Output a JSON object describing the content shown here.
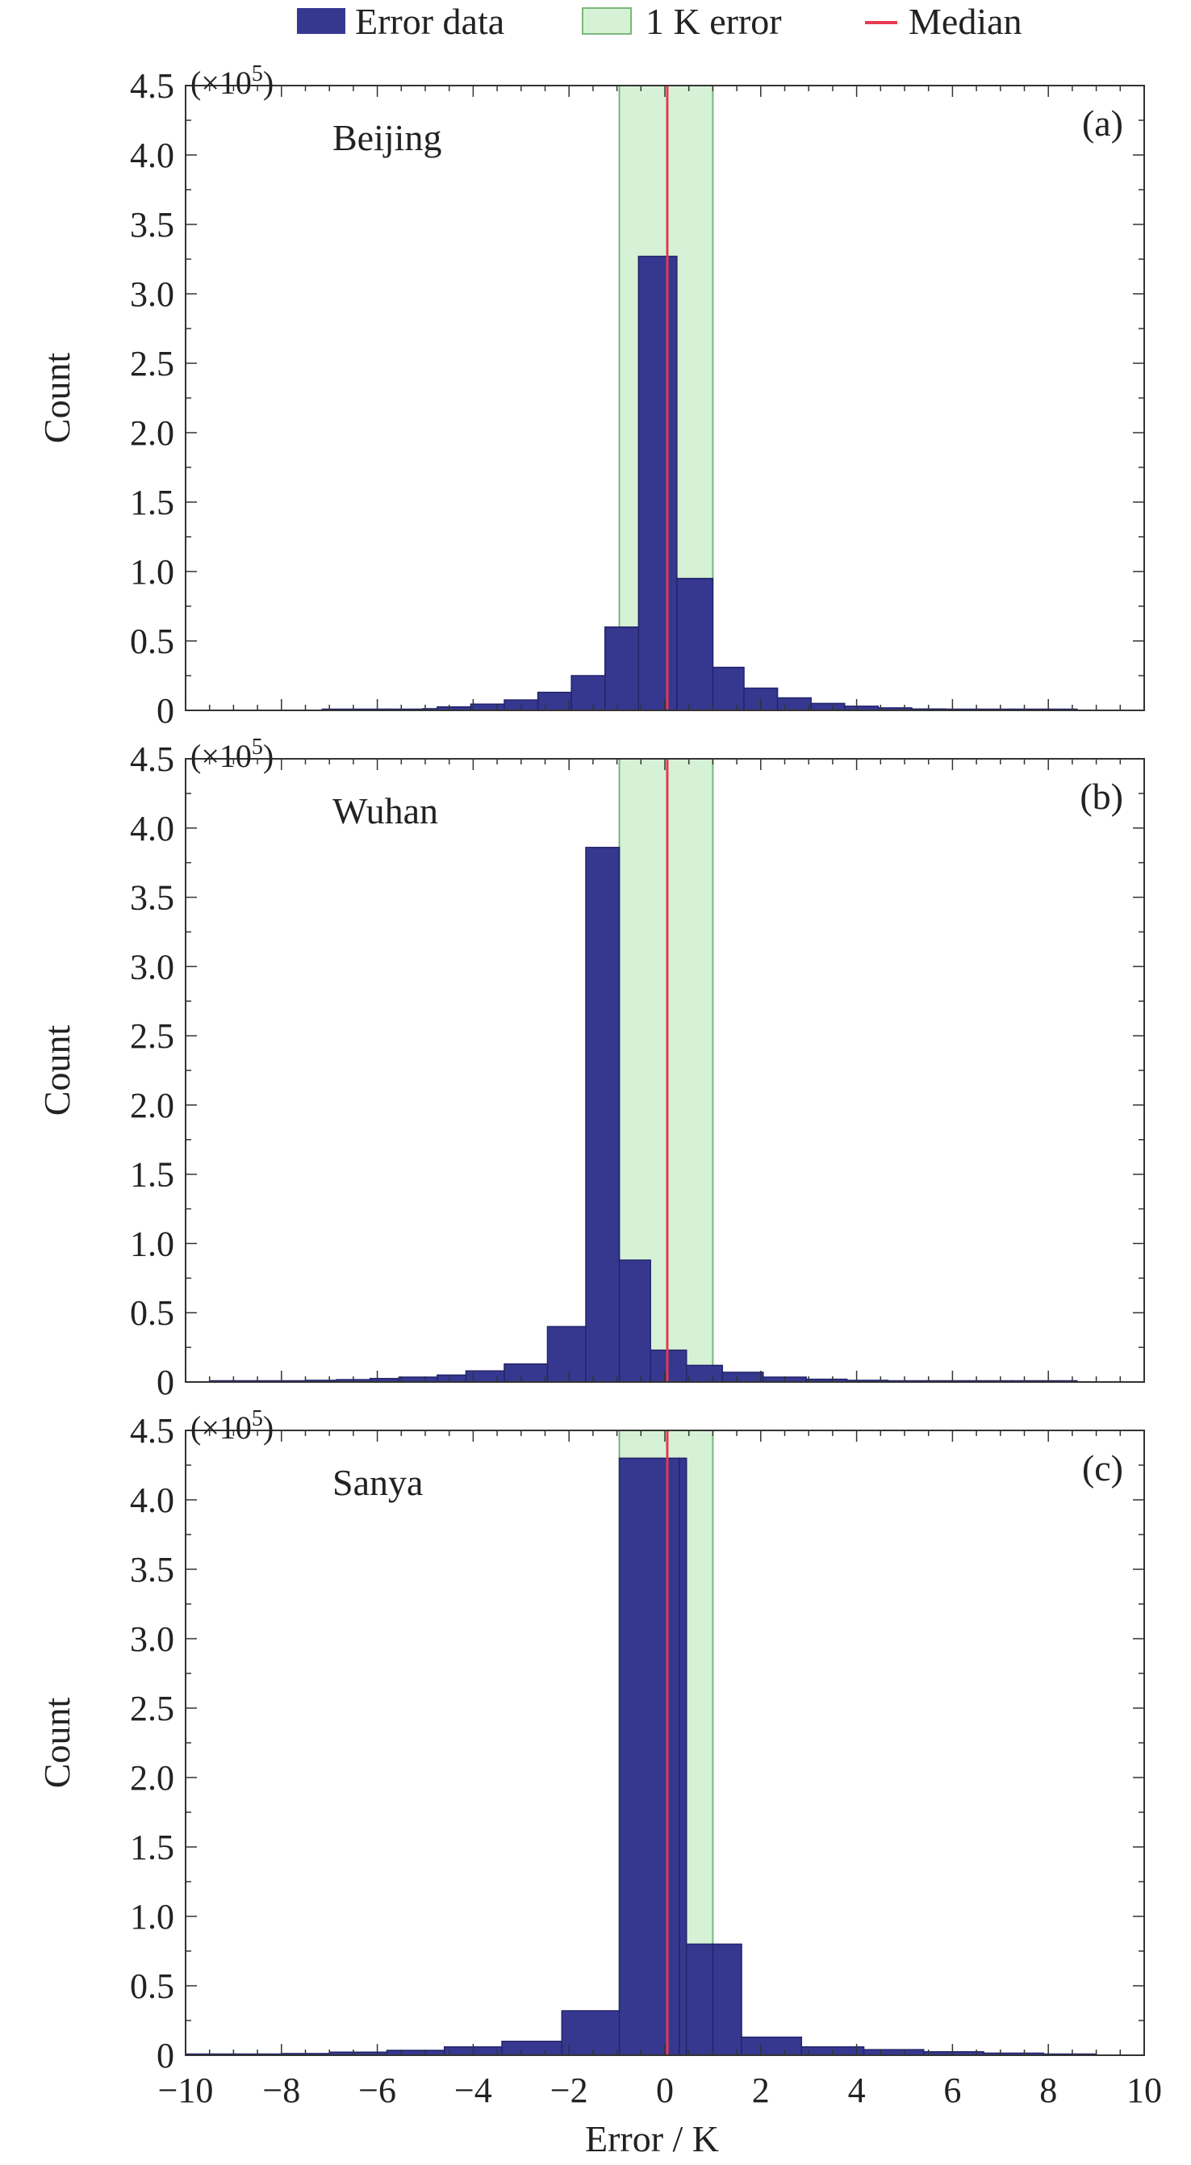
{
  "legend": {
    "items": [
      {
        "label": "Error data",
        "kind": "bar",
        "color": "#363890"
      },
      {
        "label": "1 K error",
        "kind": "band",
        "color": "#d6f2d6"
      },
      {
        "label": "Median",
        "kind": "line",
        "color": "#e8384f"
      }
    ]
  },
  "xlabel": "Error / K",
  "x_ticks": [
    "−10",
    "−8",
    "−6",
    "−4",
    "−2",
    "0",
    "2",
    "4",
    "6",
    "8",
    "10"
  ],
  "y_ticks": [
    "0",
    "0.5",
    "1.0",
    "1.5",
    "2.0",
    "2.5",
    "3.0",
    "3.5",
    "4.0",
    "4.5"
  ],
  "ylabel": "Count",
  "scale_prefix": "(×10",
  "scale_exp": "5",
  "scale_suffix": ")",
  "colors": {
    "bar_fill": "#363890",
    "bar_edge": "#22246a",
    "band_fill": "#d6f2d6",
    "band_edge": "#79b879",
    "median": "#e8384f",
    "axis": "#333333"
  },
  "chart_data": [
    {
      "type": "bar",
      "panel_label": "(a)",
      "site": "Beijing",
      "xlim": [
        -10,
        10
      ],
      "ylim": [
        0,
        4.5
      ],
      "y_multiplier": 100000,
      "band": [
        -0.95,
        1.0
      ],
      "median": 0.05,
      "bin_edges": [
        -7.15,
        -5.75,
        -5.05,
        -4.75,
        -4.05,
        -3.35,
        -2.65,
        -1.95,
        -1.25,
        -0.55,
        0.25,
        1.0,
        1.65,
        2.35,
        3.05,
        3.75,
        4.45,
        5.15,
        5.85,
        6.55,
        7.25,
        8.6
      ],
      "values": [
        0.003,
        0.008,
        0.012,
        0.025,
        0.045,
        0.075,
        0.13,
        0.25,
        0.6,
        3.27,
        0.95,
        0.31,
        0.16,
        0.09,
        0.05,
        0.03,
        0.018,
        0.01,
        0.006,
        0.004,
        0.002
      ]
    },
    {
      "type": "bar",
      "panel_label": "(b)",
      "site": "Wuhan",
      "xlim": [
        -10,
        10
      ],
      "ylim": [
        0,
        4.5
      ],
      "y_multiplier": 100000,
      "band": [
        -0.95,
        1.0
      ],
      "median": 0.05,
      "bin_edges": [
        -9.5,
        -8.2,
        -7.5,
        -6.85,
        -6.15,
        -5.55,
        -4.75,
        -4.15,
        -3.35,
        -2.45,
        -1.65,
        -0.95,
        -0.3,
        0.45,
        1.2,
        2.05,
        2.95,
        3.8,
        4.65,
        5.45,
        6.35,
        7.25,
        8.6
      ],
      "values": [
        0.004,
        0.008,
        0.012,
        0.017,
        0.025,
        0.035,
        0.05,
        0.08,
        0.13,
        0.4,
        3.86,
        0.88,
        0.23,
        0.12,
        0.07,
        0.035,
        0.02,
        0.012,
        0.007,
        0.004,
        0.002,
        0.002
      ]
    },
    {
      "type": "bar",
      "panel_label": "(c)",
      "site": "Sanya",
      "xlim": [
        -10,
        10
      ],
      "ylim": [
        0,
        4.5
      ],
      "y_multiplier": 100000,
      "band": [
        -0.95,
        1.0
      ],
      "median": 0.05,
      "bin_edges": [
        -10.0,
        -9.0,
        -8.0,
        -7.0,
        -5.8,
        -4.6,
        -3.4,
        -2.15,
        -0.95,
        0.3,
        0.45,
        1.0,
        1.6,
        2.85,
        4.15,
        5.4,
        6.65,
        7.9,
        9.0
      ],
      "values": [
        0.003,
        0.006,
        0.012,
        0.022,
        0.035,
        0.06,
        0.1,
        0.32,
        4.3,
        4.3,
        0.8,
        0.8,
        0.13,
        0.06,
        0.04,
        0.025,
        0.015,
        0.005
      ]
    }
  ]
}
